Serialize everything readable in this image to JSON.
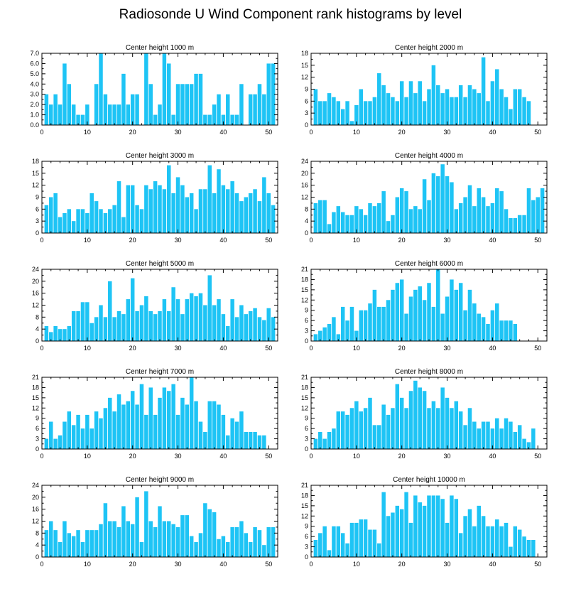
{
  "figure": {
    "title": "Radiosonde U Wind Component rank histograms by level",
    "bar_color": "#1ec4f5",
    "axis_color": "#000000",
    "background": "#ffffff"
  },
  "chart_data": [
    {
      "type": "bar",
      "title": "Center height 1000 m",
      "xlim": [
        0,
        52
      ],
      "xticks": [
        0,
        10,
        20,
        30,
        40,
        50
      ],
      "ylim": [
        0,
        7
      ],
      "yticks": [
        "0.0",
        "1.0",
        "2.0",
        "3.0",
        "4.0",
        "5.0",
        "6.0",
        "7.0"
      ],
      "x": [
        1,
        2,
        3,
        4,
        5,
        6,
        7,
        8,
        9,
        10,
        11,
        12,
        13,
        14,
        15,
        16,
        17,
        18,
        19,
        20,
        21,
        22,
        23,
        24,
        25,
        26,
        27,
        28,
        29,
        30,
        31,
        32,
        33,
        34,
        35,
        36,
        37,
        38,
        39,
        40,
        41,
        42,
        43,
        44,
        45,
        46,
        47,
        48,
        49,
        50,
        51
      ],
      "values": [
        3,
        2,
        3,
        2,
        6,
        4,
        2,
        1,
        1,
        2,
        0,
        4,
        7,
        3,
        2,
        2,
        2,
        5,
        2,
        3,
        3,
        0,
        7,
        4,
        1,
        2,
        7,
        6,
        1,
        4,
        4,
        4,
        4,
        5,
        5,
        1,
        1,
        2,
        3,
        1,
        3,
        1,
        1,
        4,
        0,
        3,
        3,
        4,
        3,
        6,
        6
      ]
    },
    {
      "type": "bar",
      "title": "Center height 2000 m",
      "xlim": [
        0,
        52
      ],
      "xticks": [
        0,
        10,
        20,
        30,
        40,
        50
      ],
      "ylim": [
        0,
        18
      ],
      "yticks": [
        "0",
        "3",
        "6",
        "9",
        "12",
        "15",
        "18"
      ],
      "x": [
        1,
        2,
        3,
        4,
        5,
        6,
        7,
        8,
        9,
        10,
        11,
        12,
        13,
        14,
        15,
        16,
        17,
        18,
        19,
        20,
        21,
        22,
        23,
        24,
        25,
        26,
        27,
        28,
        29,
        30,
        31,
        32,
        33,
        34,
        35,
        36,
        37,
        38,
        39,
        40,
        41,
        42,
        43,
        44,
        45,
        46,
        47,
        48,
        49,
        50,
        51
      ],
      "values": [
        9,
        6,
        6,
        8,
        7,
        6,
        4,
        6,
        1,
        5,
        9,
        6,
        6,
        7,
        13,
        10,
        8,
        7,
        6,
        11,
        7,
        11,
        8,
        11,
        6,
        9,
        15,
        10,
        8,
        9,
        7,
        7,
        10,
        7,
        10,
        9,
        8,
        17,
        6,
        11,
        14,
        9,
        7,
        4,
        9,
        9,
        7,
        6,
        0,
        0,
        0
      ]
    },
    {
      "type": "bar",
      "title": "Center height 3000 m",
      "xlim": [
        0,
        52
      ],
      "xticks": [
        0,
        10,
        20,
        30,
        40,
        50
      ],
      "ylim": [
        0,
        18
      ],
      "yticks": [
        "0",
        "3",
        "6",
        "9",
        "12",
        "15",
        "18"
      ],
      "x": [
        1,
        2,
        3,
        4,
        5,
        6,
        7,
        8,
        9,
        10,
        11,
        12,
        13,
        14,
        15,
        16,
        17,
        18,
        19,
        20,
        21,
        22,
        23,
        24,
        25,
        26,
        27,
        28,
        29,
        30,
        31,
        32,
        33,
        34,
        35,
        36,
        37,
        38,
        39,
        40,
        41,
        42,
        43,
        44,
        45,
        46,
        47,
        48,
        49,
        50,
        51
      ],
      "values": [
        7,
        9,
        10,
        4,
        5,
        6,
        3,
        6,
        6,
        5,
        10,
        8,
        6,
        5,
        6,
        7,
        13,
        4,
        12,
        12,
        7,
        6,
        12,
        11,
        13,
        12,
        11,
        17,
        10,
        14,
        12,
        9,
        10,
        6,
        11,
        11,
        17,
        10,
        16,
        12,
        11,
        13,
        10,
        8,
        9,
        10,
        11,
        8,
        14,
        10,
        7
      ]
    },
    {
      "type": "bar",
      "title": "Center height 4000 m",
      "xlim": [
        0,
        52
      ],
      "xticks": [
        0,
        10,
        20,
        30,
        40,
        50
      ],
      "ylim": [
        0,
        24
      ],
      "yticks": [
        "0",
        "4",
        "8",
        "12",
        "16",
        "20",
        "24"
      ],
      "x": [
        1,
        2,
        3,
        4,
        5,
        6,
        7,
        8,
        9,
        10,
        11,
        12,
        13,
        14,
        15,
        16,
        17,
        18,
        19,
        20,
        21,
        22,
        23,
        24,
        25,
        26,
        27,
        28,
        29,
        30,
        31,
        32,
        33,
        34,
        35,
        36,
        37,
        38,
        39,
        40,
        41,
        42,
        43,
        44,
        45,
        46,
        47,
        48,
        49,
        50,
        51
      ],
      "values": [
        10,
        11,
        11,
        3,
        7,
        9,
        7,
        6,
        6,
        9,
        8,
        6,
        10,
        9,
        10,
        14,
        4,
        6,
        12,
        15,
        14,
        8,
        9,
        8,
        18,
        11,
        20,
        19,
        23,
        19,
        17,
        8,
        10,
        12,
        16,
        9,
        15,
        12,
        9,
        10,
        15,
        14,
        8,
        5,
        5,
        6,
        6,
        15,
        11,
        12,
        15
      ]
    },
    {
      "type": "bar",
      "title": "Center height 5000 m",
      "xlim": [
        0,
        52
      ],
      "xticks": [
        0,
        10,
        20,
        30,
        40,
        50
      ],
      "ylim": [
        0,
        24
      ],
      "yticks": [
        "0",
        "4",
        "8",
        "12",
        "16",
        "20",
        "24"
      ],
      "x": [
        1,
        2,
        3,
        4,
        5,
        6,
        7,
        8,
        9,
        10,
        11,
        12,
        13,
        14,
        15,
        16,
        17,
        18,
        19,
        20,
        21,
        22,
        23,
        24,
        25,
        26,
        27,
        28,
        29,
        30,
        31,
        32,
        33,
        34,
        35,
        36,
        37,
        38,
        39,
        40,
        41,
        42,
        43,
        44,
        45,
        46,
        47,
        48,
        49,
        50,
        51
      ],
      "values": [
        5,
        3,
        5,
        4,
        4,
        5,
        10,
        10,
        13,
        13,
        6,
        8,
        12,
        8,
        20,
        8,
        10,
        9,
        14,
        21,
        10,
        12,
        15,
        10,
        9,
        10,
        14,
        10,
        18,
        14,
        9,
        14,
        16,
        15,
        16,
        12,
        22,
        12,
        14,
        9,
        5,
        14,
        8,
        12,
        9,
        10,
        11,
        8,
        7,
        11,
        8
      ]
    },
    {
      "type": "bar",
      "title": "Center height 6000 m",
      "xlim": [
        0,
        52
      ],
      "xticks": [
        0,
        10,
        20,
        30,
        40,
        50
      ],
      "ylim": [
        0,
        21
      ],
      "yticks": [
        "0",
        "3",
        "6",
        "9",
        "12",
        "15",
        "18",
        "21"
      ],
      "x": [
        1,
        2,
        3,
        4,
        5,
        6,
        7,
        8,
        9,
        10,
        11,
        12,
        13,
        14,
        15,
        16,
        17,
        18,
        19,
        20,
        21,
        22,
        23,
        24,
        25,
        26,
        27,
        28,
        29,
        30,
        31,
        32,
        33,
        34,
        35,
        36,
        37,
        38,
        39,
        40,
        41,
        42,
        43,
        44,
        45,
        46,
        47,
        48,
        49,
        50,
        51
      ],
      "values": [
        2,
        3,
        4,
        5,
        7,
        2,
        10,
        6,
        10,
        3,
        9,
        9,
        11,
        15,
        10,
        10,
        12,
        15,
        17,
        18,
        8,
        13,
        15,
        16,
        12,
        17,
        10,
        21,
        8,
        13,
        18,
        15,
        17,
        9,
        15,
        11,
        8,
        7,
        5,
        9,
        11,
        6,
        6,
        6,
        5,
        0,
        0,
        0,
        0,
        0,
        0
      ]
    },
    {
      "type": "bar",
      "title": "Center height 7000 m",
      "xlim": [
        0,
        52
      ],
      "xticks": [
        0,
        10,
        20,
        30,
        40,
        50
      ],
      "ylim": [
        0,
        21
      ],
      "yticks": [
        "0",
        "3",
        "6",
        "9",
        "12",
        "15",
        "18",
        "21"
      ],
      "x": [
        1,
        2,
        3,
        4,
        5,
        6,
        7,
        8,
        9,
        10,
        11,
        12,
        13,
        14,
        15,
        16,
        17,
        18,
        19,
        20,
        21,
        22,
        23,
        24,
        25,
        26,
        27,
        28,
        29,
        30,
        31,
        32,
        33,
        34,
        35,
        36,
        37,
        38,
        39,
        40,
        41,
        42,
        43,
        44,
        45,
        46,
        47,
        48,
        49,
        50,
        51
      ],
      "values": [
        3,
        8,
        3,
        4,
        8,
        11,
        7,
        10,
        6,
        10,
        6,
        11,
        9,
        12,
        15,
        11,
        16,
        13,
        14,
        17,
        13,
        19,
        10,
        18,
        10,
        15,
        18,
        17,
        19,
        10,
        15,
        13,
        21,
        14,
        8,
        5,
        14,
        14,
        13,
        10,
        4,
        9,
        8,
        11,
        5,
        5,
        5,
        4,
        4,
        0,
        0
      ]
    },
    {
      "type": "bar",
      "title": "Center height 8000 m",
      "xlim": [
        0,
        52
      ],
      "xticks": [
        0,
        10,
        20,
        30,
        40,
        50
      ],
      "ylim": [
        0,
        21
      ],
      "yticks": [
        "0",
        "3",
        "6",
        "9",
        "12",
        "15",
        "18",
        "21"
      ],
      "x": [
        1,
        2,
        3,
        4,
        5,
        6,
        7,
        8,
        9,
        10,
        11,
        12,
        13,
        14,
        15,
        16,
        17,
        18,
        19,
        20,
        21,
        22,
        23,
        24,
        25,
        26,
        27,
        28,
        29,
        30,
        31,
        32,
        33,
        34,
        35,
        36,
        37,
        38,
        39,
        40,
        41,
        42,
        43,
        44,
        45,
        46,
        47,
        48,
        49,
        50,
        51
      ],
      "values": [
        3,
        5,
        3,
        5,
        6,
        11,
        11,
        10,
        12,
        14,
        11,
        12,
        15,
        7,
        7,
        13,
        10,
        12,
        19,
        15,
        12,
        17,
        20,
        18,
        17,
        12,
        14,
        12,
        18,
        15,
        12,
        14,
        11,
        7,
        12,
        8,
        6,
        8,
        8,
        6,
        9,
        6,
        9,
        8,
        5,
        7,
        3,
        2,
        6,
        0,
        0
      ]
    },
    {
      "type": "bar",
      "title": "Center height 9000 m",
      "xlim": [
        0,
        52
      ],
      "xticks": [
        0,
        10,
        20,
        30,
        40,
        50
      ],
      "ylim": [
        0,
        24
      ],
      "yticks": [
        "0",
        "4",
        "8",
        "12",
        "16",
        "20",
        "24"
      ],
      "x": [
        1,
        2,
        3,
        4,
        5,
        6,
        7,
        8,
        9,
        10,
        11,
        12,
        13,
        14,
        15,
        16,
        17,
        18,
        19,
        20,
        21,
        22,
        23,
        24,
        25,
        26,
        27,
        28,
        29,
        30,
        31,
        32,
        33,
        34,
        35,
        36,
        37,
        38,
        39,
        40,
        41,
        42,
        43,
        44,
        45,
        46,
        47,
        48,
        49,
        50,
        51
      ],
      "values": [
        9,
        12,
        9,
        5,
        12,
        8,
        7,
        9,
        5,
        9,
        9,
        9,
        11,
        18,
        12,
        12,
        10,
        17,
        12,
        11,
        20,
        5,
        22,
        12,
        10,
        17,
        12,
        12,
        11,
        10,
        14,
        14,
        7,
        5,
        8,
        18,
        16,
        15,
        6,
        7,
        5,
        10,
        10,
        12,
        8,
        5,
        10,
        9,
        4,
        10,
        10
      ]
    },
    {
      "type": "bar",
      "title": "Center height 10000 m",
      "xlim": [
        0,
        52
      ],
      "xticks": [
        0,
        10,
        20,
        30,
        40,
        50
      ],
      "ylim": [
        0,
        21
      ],
      "yticks": [
        "0",
        "3",
        "6",
        "9",
        "12",
        "15",
        "18",
        "21"
      ],
      "x": [
        1,
        2,
        3,
        4,
        5,
        6,
        7,
        8,
        9,
        10,
        11,
        12,
        13,
        14,
        15,
        16,
        17,
        18,
        19,
        20,
        21,
        22,
        23,
        24,
        25,
        26,
        27,
        28,
        29,
        30,
        31,
        32,
        33,
        34,
        35,
        36,
        37,
        38,
        39,
        40,
        41,
        42,
        43,
        44,
        45,
        46,
        47,
        48,
        49,
        50,
        51
      ],
      "values": [
        5,
        7,
        9,
        2,
        9,
        9,
        7,
        4,
        10,
        10,
        11,
        11,
        8,
        8,
        4,
        19,
        12,
        13,
        15,
        14,
        19,
        10,
        18,
        16,
        15,
        18,
        18,
        18,
        17,
        10,
        18,
        17,
        7,
        12,
        14,
        9,
        15,
        12,
        9,
        9,
        11,
        9,
        10,
        3,
        9,
        8,
        6,
        5,
        5,
        0,
        0
      ]
    }
  ]
}
